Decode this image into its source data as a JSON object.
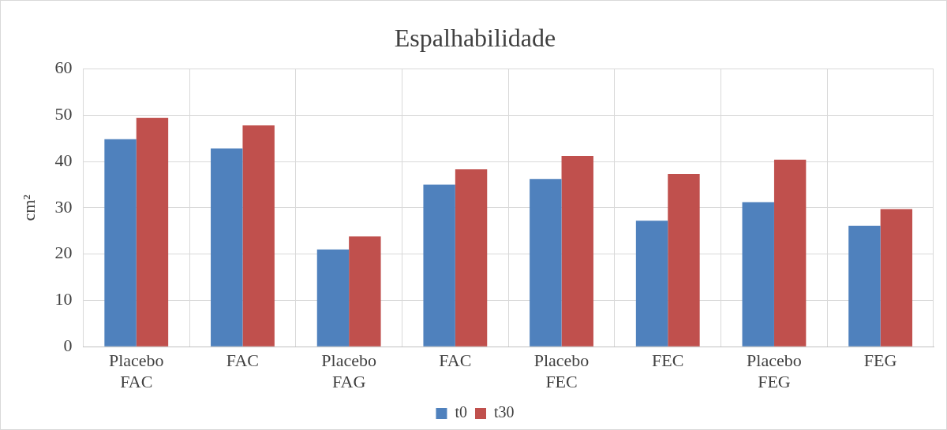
{
  "chart_data": {
    "type": "bar",
    "title": "Espalhabilidade",
    "ylabel": "cm²",
    "categories": [
      "Placebo FAC",
      "FAC",
      "Placebo FAG",
      "FAC",
      "Placebo FEC",
      "FEC",
      "Placebo FEG",
      "FEG"
    ],
    "series": [
      {
        "name": "t0",
        "color": "#4f81bd",
        "values": [
          44.8,
          42.8,
          21.0,
          35.0,
          36.2,
          27.2,
          31.2,
          26.1
        ]
      },
      {
        "name": "t30",
        "color": "#c0504d",
        "values": [
          49.4,
          47.8,
          23.8,
          38.3,
          41.2,
          37.3,
          40.4,
          29.7
        ]
      }
    ],
    "ylim": [
      0,
      60
    ],
    "yticks": [
      0,
      10,
      20,
      30,
      40,
      50,
      60
    ],
    "grid": true,
    "legend": "bottom"
  }
}
